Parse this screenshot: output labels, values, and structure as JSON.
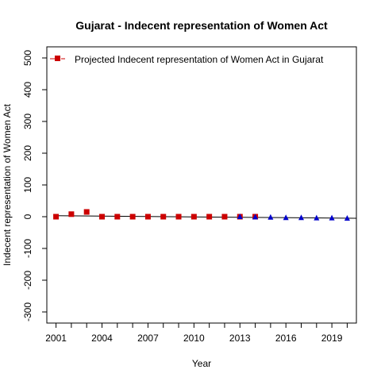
{
  "chart_data": {
    "type": "scatter",
    "title": "Gujarat  -  Indecent representation of Women Act",
    "xlabel": "Year",
    "ylabel": "Indecent representation of Women Act",
    "xlim": [
      2000.4,
      2020.6
    ],
    "ylim": [
      -335,
      535
    ],
    "x_ticks": [
      2001,
      2004,
      2007,
      2010,
      2013,
      2016,
      2019
    ],
    "y_ticks": [
      -300,
      -200,
      -100,
      0,
      100,
      200,
      300,
      400,
      500
    ],
    "legend": {
      "position": "top-left",
      "label": "Projected  Indecent representation of Women Act  in  Gujarat"
    },
    "series": [
      {
        "kind": "actual",
        "color": "#cc0000",
        "marker": "square",
        "x": [
          2001,
          2002,
          2003,
          2004,
          2005,
          2006,
          2007,
          2008,
          2009,
          2010,
          2011,
          2012,
          2013,
          2014
        ],
        "y": [
          0,
          8,
          15,
          0,
          0,
          0,
          0,
          0,
          0,
          0,
          0,
          0,
          0,
          0
        ]
      },
      {
        "kind": "projected",
        "color": "#0000cc",
        "marker": "triangle",
        "x": [
          2013,
          2014,
          2015,
          2016,
          2017,
          2018,
          2019,
          2020
        ],
        "y": [
          0,
          -1,
          -2,
          -3,
          -3,
          -4,
          -4,
          -5
        ]
      }
    ],
    "trend_line": {
      "x": [
        2001,
        2020.6
      ],
      "y": [
        3,
        -5
      ]
    }
  }
}
